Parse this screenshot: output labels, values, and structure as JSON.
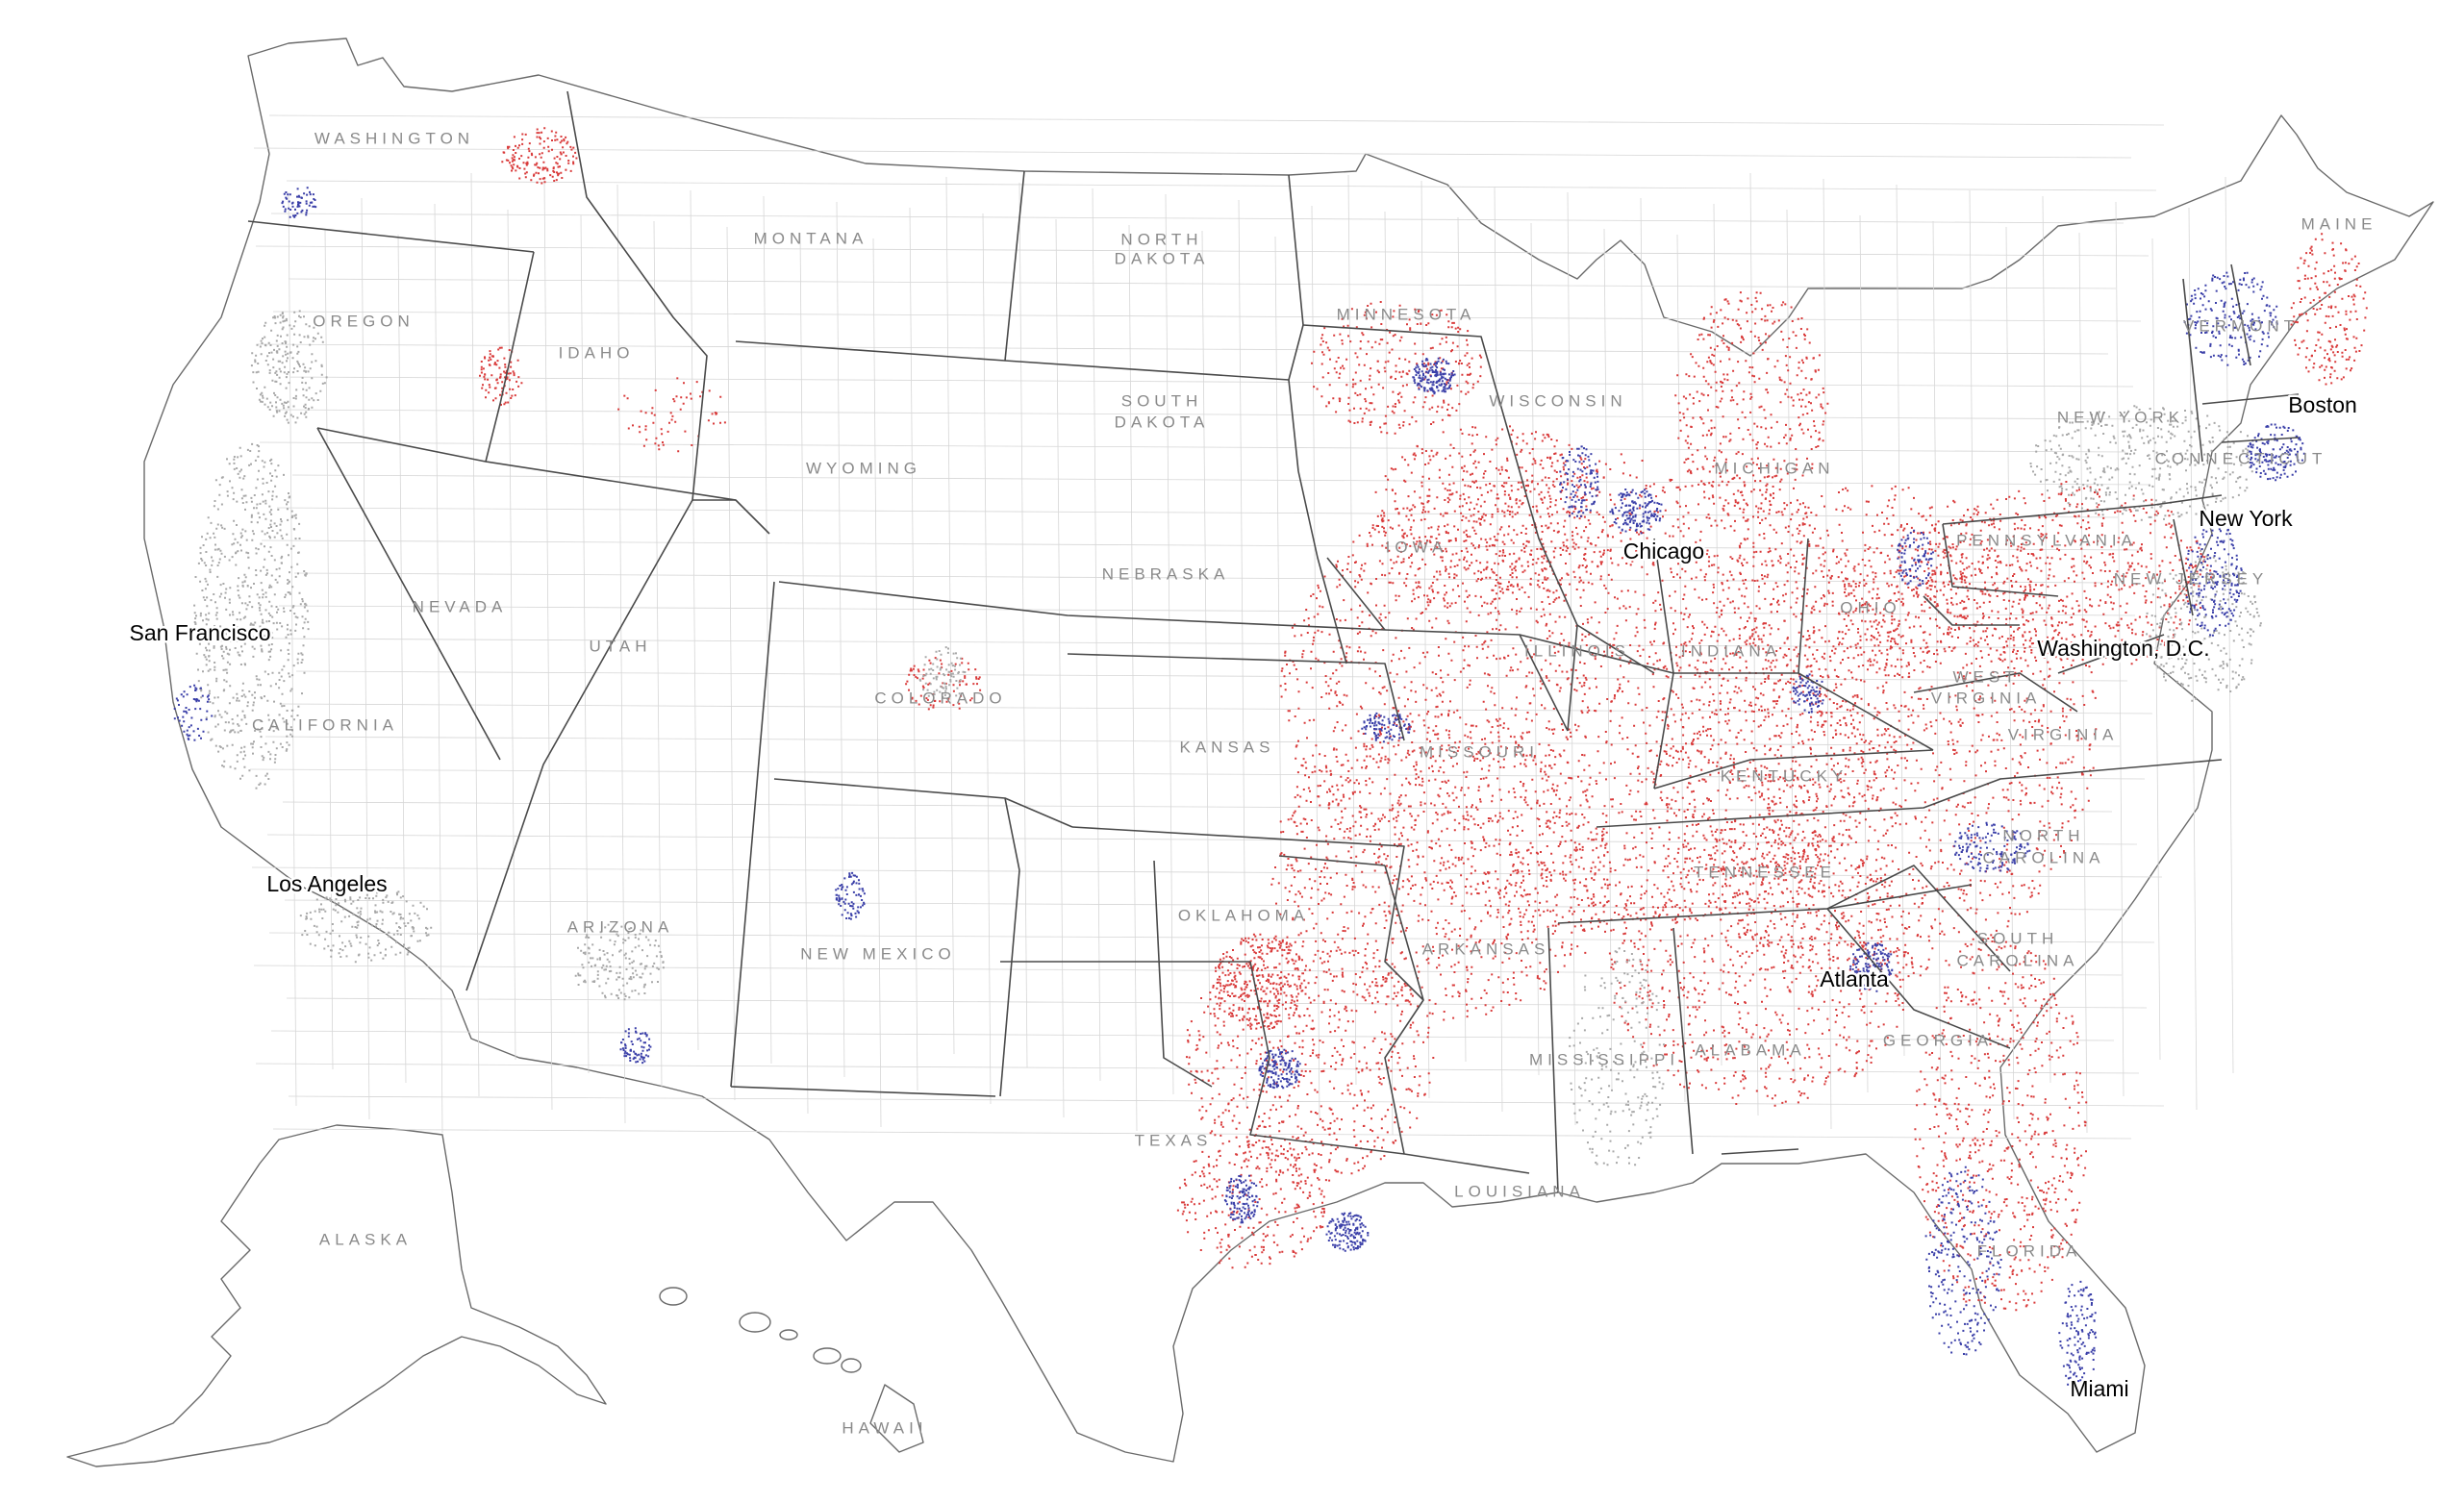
{
  "colors": {
    "republican_dot": "#d93a3a",
    "democratic_dot": "#3a3fa8",
    "other_dot": "#a8a8a8",
    "state_border": "#4a4a4a",
    "county_border": "#d6d6d6"
  },
  "state_labels": [
    {
      "id": "washington",
      "text": "WASHINGTON"
    },
    {
      "id": "oregon",
      "text": "OREGON"
    },
    {
      "id": "idaho",
      "text": "IDAHO"
    },
    {
      "id": "montana",
      "text": "MONTANA"
    },
    {
      "id": "north-dakota-1",
      "text": "NORTH"
    },
    {
      "id": "north-dakota-2",
      "text": "DAKOTA"
    },
    {
      "id": "south-dakota-1",
      "text": "SOUTH"
    },
    {
      "id": "south-dakota-2",
      "text": "DAKOTA"
    },
    {
      "id": "minnesota",
      "text": "MINNESOTA"
    },
    {
      "id": "wisconsin",
      "text": "WISCONSIN"
    },
    {
      "id": "michigan",
      "text": "MICHIGAN"
    },
    {
      "id": "wyoming",
      "text": "WYOMING"
    },
    {
      "id": "nevada",
      "text": "NEVADA"
    },
    {
      "id": "utah",
      "text": "UTAH"
    },
    {
      "id": "colorado",
      "text": "COLORADO"
    },
    {
      "id": "california",
      "text": "CALIFORNIA"
    },
    {
      "id": "nebraska",
      "text": "NEBRASKA"
    },
    {
      "id": "iowa",
      "text": "IOWA"
    },
    {
      "id": "illinois",
      "text": "ILLINOIS"
    },
    {
      "id": "indiana",
      "text": "INDIANA"
    },
    {
      "id": "ohio",
      "text": "OHIO"
    },
    {
      "id": "pennsylvania",
      "text": "PENNSYLVANIA"
    },
    {
      "id": "new-york",
      "text": "NEW YORK"
    },
    {
      "id": "vermont",
      "text": "VERMONT"
    },
    {
      "id": "maine",
      "text": "MAINE"
    },
    {
      "id": "connecticut",
      "text": "CONNECTICUT"
    },
    {
      "id": "new-jersey",
      "text": "NEW JERSEY"
    },
    {
      "id": "west-virginia-1",
      "text": "WEST"
    },
    {
      "id": "west-virginia-2",
      "text": "VIRGINIA"
    },
    {
      "id": "virginia",
      "text": "VIRGINIA"
    },
    {
      "id": "kansas",
      "text": "KANSAS"
    },
    {
      "id": "missouri",
      "text": "MISSOURI"
    },
    {
      "id": "kentucky",
      "text": "KENTUCKY"
    },
    {
      "id": "tennessee",
      "text": "TENNESSEE"
    },
    {
      "id": "north-carolina-1",
      "text": "NORTH"
    },
    {
      "id": "north-carolina-2",
      "text": "CAROLINA"
    },
    {
      "id": "south-carolina-1",
      "text": "SOUTH"
    },
    {
      "id": "south-carolina-2",
      "text": "CAROLINA"
    },
    {
      "id": "arizona",
      "text": "ARIZONA"
    },
    {
      "id": "new-mexico",
      "text": "NEW MEXICO"
    },
    {
      "id": "oklahoma",
      "text": "OKLAHOMA"
    },
    {
      "id": "arkansas",
      "text": "ARKANSAS"
    },
    {
      "id": "mississippi",
      "text": "MISSISSIPPI"
    },
    {
      "id": "alabama",
      "text": "ALABAMA"
    },
    {
      "id": "georgia",
      "text": "GEORGIA"
    },
    {
      "id": "texas",
      "text": "TEXAS"
    },
    {
      "id": "louisiana",
      "text": "LOUISIANA"
    },
    {
      "id": "florida",
      "text": "FLORIDA"
    },
    {
      "id": "alaska",
      "text": "ALASKA"
    },
    {
      "id": "hawaii",
      "text": "HAWAII"
    }
  ],
  "city_labels": [
    {
      "id": "san-francisco",
      "text": "San Francisco"
    },
    {
      "id": "los-angeles",
      "text": "Los Angeles"
    },
    {
      "id": "chicago",
      "text": "Chicago"
    },
    {
      "id": "boston",
      "text": "Boston"
    },
    {
      "id": "new-york",
      "text": "New York"
    },
    {
      "id": "washington-dc",
      "text": "Washington, D.C."
    },
    {
      "id": "atlanta",
      "text": "Atlanta"
    },
    {
      "id": "miami",
      "text": "Miami"
    }
  ]
}
